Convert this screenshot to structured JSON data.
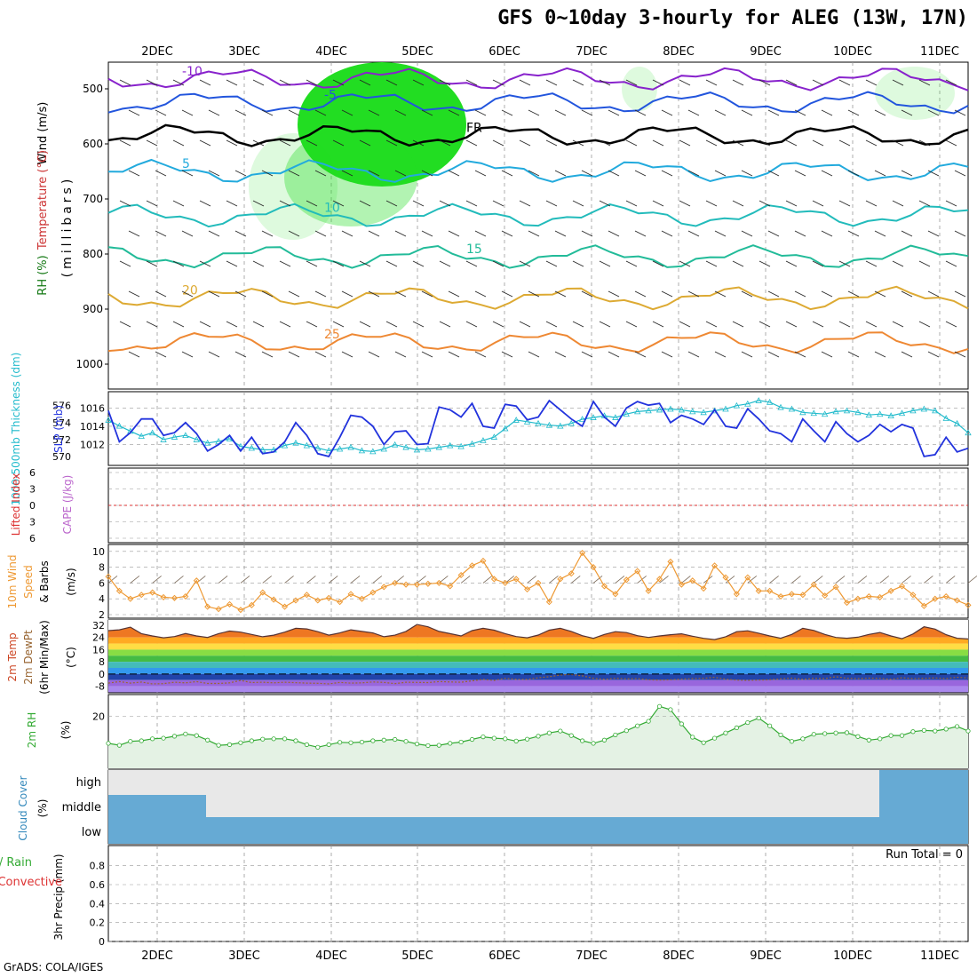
{
  "page": {
    "title": "GFS 0~10day 3-hourly for ALEG (13W, 17N)",
    "credit": "GrADS: COLA/IGES"
  },
  "colors": {
    "grid": "#999999",
    "rh_fill": "#22dd22",
    "temp_contour": "#ff8800",
    "thickness": "#22bbcc",
    "slp": "#2233dd",
    "wind_speed": "#ee9933",
    "rh2m": "#33aa33",
    "cloud": "#66aad4",
    "cloud_clear": "#e8e8e8"
  },
  "chart_data": [
    {
      "id": "profile",
      "type": "line",
      "xlabels": [
        "2DEC",
        "3DEC",
        "4DEC",
        "5DEC",
        "6DEC",
        "7DEC",
        "8DEC",
        "9DEC",
        "10DEC",
        "11DEC"
      ],
      "ylabel_parts": [
        "RH (%)",
        "Temperature (°C)",
        "Wind (m/s)"
      ],
      "ylabel2": "(millibars)",
      "pressure_ticks": [
        500,
        600,
        700,
        800,
        900,
        1000
      ],
      "isotherms": [
        {
          "label": "-10",
          "p": 482
        },
        {
          "label": "-5",
          "p": 525
        },
        {
          "label": "FR",
          "p": 585
        },
        {
          "label": "5",
          "p": 650
        },
        {
          "label": "10",
          "p": 730
        },
        {
          "label": "15",
          "p": 805
        },
        {
          "label": "20",
          "p": 880
        },
        {
          "label": "25",
          "p": 960
        }
      ]
    },
    {
      "id": "slp_thickness",
      "type": "line",
      "ylabel_left": "1000-500mb Thickness (dm)",
      "ylabel_right": "SLP (mb)",
      "thickness_ticks": [
        570,
        572,
        574,
        576
      ],
      "slp_ticks": [
        1012,
        1014,
        1016
      ],
      "series": [
        {
          "name": "SLP (mb)",
          "values": [
            1015.7,
            1012.3,
            1013.3,
            1014.8,
            1014.8,
            1013.0,
            1013.3,
            1014.4,
            1013.2,
            1011.3,
            1012.0,
            1013.0,
            1011.3,
            1012.8,
            1011.0,
            1011.2,
            1012.3,
            1014.4,
            1013.0,
            1011.0,
            1010.7,
            1012.8,
            1015.2,
            1015.0,
            1014.0,
            1012.0,
            1013.4,
            1013.5,
            1012.0,
            1012.1,
            1016.1,
            1015.8,
            1015.0,
            1016.5,
            1014.0,
            1013.8,
            1016.4,
            1016.2,
            1014.7,
            1015.0,
            1016.8,
            1015.8,
            1014.8,
            1014.0,
            1016.7,
            1015.0,
            1014.0,
            1016.0,
            1016.7,
            1016.3,
            1016.5,
            1014.4,
            1015.2,
            1014.8,
            1014.2,
            1015.8,
            1014.0,
            1013.8,
            1015.9,
            1014.8,
            1013.5,
            1013.2,
            1012.3,
            1014.8,
            1013.5,
            1012.3,
            1014.5,
            1013.2,
            1012.3,
            1013.0,
            1014.2,
            1013.4,
            1014.2,
            1013.8,
            1010.7,
            1010.9,
            1012.8,
            1011.2,
            1011.6
          ]
        },
        {
          "name": "1000-500mb Thickness (dm)",
          "values": [
            574.3,
            573.6,
            573.0,
            572.4,
            572.8,
            572.0,
            572.3,
            572.5,
            572.0,
            571.6,
            571.8,
            572.1,
            571.2,
            571.0,
            570.8,
            570.8,
            571.3,
            571.6,
            571.3,
            571.0,
            570.7,
            570.9,
            571.1,
            570.7,
            570.6,
            570.9,
            571.4,
            571.1,
            570.8,
            570.9,
            571.1,
            571.3,
            571.2,
            571.5,
            571.9,
            572.3,
            573.3,
            574.3,
            574.1,
            573.9,
            573.7,
            573.6,
            573.9,
            574.4,
            574.6,
            574.8,
            574.6,
            575.0,
            575.3,
            575.4,
            575.5,
            575.6,
            575.5,
            575.3,
            575.2,
            575.4,
            575.6,
            576.0,
            576.2,
            576.6,
            576.4,
            575.8,
            575.6,
            575.2,
            575.1,
            575.0,
            575.3,
            575.4,
            575.2,
            574.9,
            575.0,
            574.8,
            575.1,
            575.4,
            575.6,
            575.4,
            574.5,
            573.9,
            572.8
          ]
        }
      ]
    },
    {
      "id": "instability",
      "type": "line",
      "ylabel_left": "Lifted Index",
      "ylabel_right": "CAPE (J/kg)",
      "li_ticks": [
        -6,
        -3,
        0,
        3,
        6
      ],
      "series": [
        {
          "name": "Lifted Index",
          "values": [
            0
          ]
        }
      ]
    },
    {
      "id": "wind10m",
      "type": "line",
      "ylabel_parts": [
        "10m Wind",
        "Speed",
        "& Barbs"
      ],
      "unit": "(m/s)",
      "yticks": [
        2,
        4,
        6,
        8,
        10
      ],
      "series": [
        {
          "name": "10m Wind Speed",
          "values": [
            6.8,
            5.0,
            4.0,
            4.5,
            4.8,
            4.2,
            4.1,
            4.3,
            6.3,
            3.0,
            2.7,
            3.3,
            2.6,
            3.2,
            4.8,
            3.9,
            3.0,
            3.8,
            4.5,
            3.8,
            4.1,
            3.6,
            4.6,
            4.0,
            4.8,
            5.5,
            6.0,
            5.8,
            5.8,
            5.9,
            6.0,
            5.6,
            7.0,
            8.2,
            8.8,
            6.5,
            6.0,
            6.5,
            5.2,
            6.0,
            3.6,
            6.5,
            7.2,
            9.8,
            8.0,
            5.6,
            4.6,
            6.4,
            7.5,
            5.0,
            6.5,
            8.7,
            5.8,
            6.3,
            5.3,
            8.2,
            6.7,
            4.6,
            6.7,
            5.0,
            5.0,
            4.3,
            4.6,
            4.5,
            5.8,
            4.4,
            5.5,
            3.5,
            4.0,
            4.3,
            4.2,
            5.0,
            5.6,
            4.5,
            3.1,
            4.0,
            4.3,
            3.8,
            3.2
          ]
        }
      ]
    },
    {
      "id": "temp2m",
      "type": "area",
      "ylabel_parts": [
        "2m Temp",
        "2m DewPt",
        "(6hr Min/Max)"
      ],
      "unit": "(°C)",
      "yticks": [
        32,
        24,
        16,
        8,
        0,
        -8
      ],
      "series": [
        {
          "name": "2m Temp",
          "values": [
            28.5,
            29.0,
            30.8,
            26.5,
            25.0,
            23.8,
            24.6,
            26.6,
            25.0,
            24.0,
            26.5,
            28.2,
            27.5,
            26.0,
            24.5,
            25.5,
            27.5,
            30.0,
            29.6,
            27.8,
            25.5,
            27.0,
            29.0,
            28.0,
            27.0,
            24.5,
            25.5,
            28.0,
            32.5,
            31.0,
            28.0,
            26.5,
            25.0,
            28.5,
            30.0,
            28.8,
            26.5,
            24.6,
            23.8,
            25.6,
            28.8,
            30.0,
            28.0,
            25.2,
            23.4,
            26.0,
            27.8,
            27.2,
            25.2,
            24.0,
            25.0,
            25.8,
            26.4,
            24.8,
            23.4,
            22.6,
            24.5,
            27.8,
            28.4,
            26.8,
            25.0,
            23.5,
            26.0,
            30.0,
            28.6,
            26.0,
            24.0,
            23.5,
            24.2,
            26.0,
            27.3,
            25.0,
            23.2,
            26.3,
            31.0,
            29.5,
            25.8,
            23.5,
            23.0
          ]
        },
        {
          "name": "2m DewPt",
          "values": [
            -6.0,
            -5.0,
            -6.0,
            -5.3,
            -6.5,
            -6.3,
            -5.4,
            -5.8,
            -5.0,
            -6.2,
            -6.2,
            -5.8,
            -4.2,
            -5.6,
            -5.4,
            -5.8,
            -5.4,
            -5.7,
            -6.0,
            -6.1,
            -6.5,
            -5.5,
            -6.0,
            -5.8,
            -5.2,
            -5.5,
            -6.3,
            -5.4,
            -5.5,
            -5.6,
            -5.0,
            -5.2,
            -5.4,
            -4.5,
            -3.6,
            -4.2,
            -2.8,
            -3.5,
            -3.6,
            -2.5,
            -1.8,
            -0.6,
            -0.3,
            -1.2,
            -2.8,
            -3.5,
            -2.8,
            -3.2,
            -3.0,
            -3.8,
            -4.0,
            -3.8,
            -3.4,
            -3.0,
            -2.8,
            -2.2,
            -3.4,
            -4.0,
            -4.2,
            -4.0,
            -3.8,
            -3.2,
            -2.7,
            -3.5,
            -2.8,
            -3.0,
            -1.8,
            -2.8,
            -3.0,
            -2.7,
            -2.8,
            -3.5,
            -2.5,
            -3.0,
            -2.8,
            -2.6,
            -3.0,
            -2.2,
            -2.6
          ]
        }
      ]
    },
    {
      "id": "rh2m",
      "type": "line",
      "ylabel": "2m RH",
      "unit": "(%)",
      "yticks": [
        20
      ],
      "series": [
        {
          "name": "2m RH",
          "values": [
            11.6,
            11.0,
            12.2,
            12.4,
            13.0,
            13.2,
            13.8,
            14.5,
            14.0,
            12.6,
            11.0,
            11.2,
            11.8,
            12.4,
            12.9,
            13.0,
            13.0,
            12.4,
            11.2,
            10.4,
            11.2,
            11.9,
            11.8,
            12.0,
            12.4,
            12.6,
            12.8,
            12.2,
            11.4,
            10.9,
            11.0,
            11.6,
            12.0,
            12.8,
            13.6,
            13.2,
            13.0,
            12.3,
            12.9,
            13.8,
            14.8,
            15.4,
            14.0,
            12.4,
            11.6,
            12.6,
            14.2,
            15.5,
            17.0,
            18.4,
            23.0,
            22.0,
            17.6,
            13.5,
            11.8,
            13.2,
            14.8,
            16.4,
            18.0,
            19.4,
            17.0,
            14.2,
            12.2,
            13.0,
            14.4,
            14.6,
            14.8,
            14.9,
            13.7,
            12.6,
            13.0,
            14.0,
            14.0,
            15.2,
            15.6,
            15.4,
            16.0,
            16.8,
            15.4
          ]
        }
      ]
    },
    {
      "id": "cloud",
      "type": "area",
      "ylabel": "Cloud Cover",
      "unit": "(%)",
      "levels": [
        "high",
        "middle",
        "low"
      ]
    },
    {
      "id": "precip",
      "type": "bar",
      "ylabel_parts": [
        "Total / Rain",
        "Convective"
      ],
      "ylabel2": "3hr Precip (mm)",
      "yticks": [
        0,
        0.2,
        0.4,
        0.6,
        0.8
      ],
      "run_total": "Run Total = 0",
      "values": [
        0
      ]
    }
  ]
}
